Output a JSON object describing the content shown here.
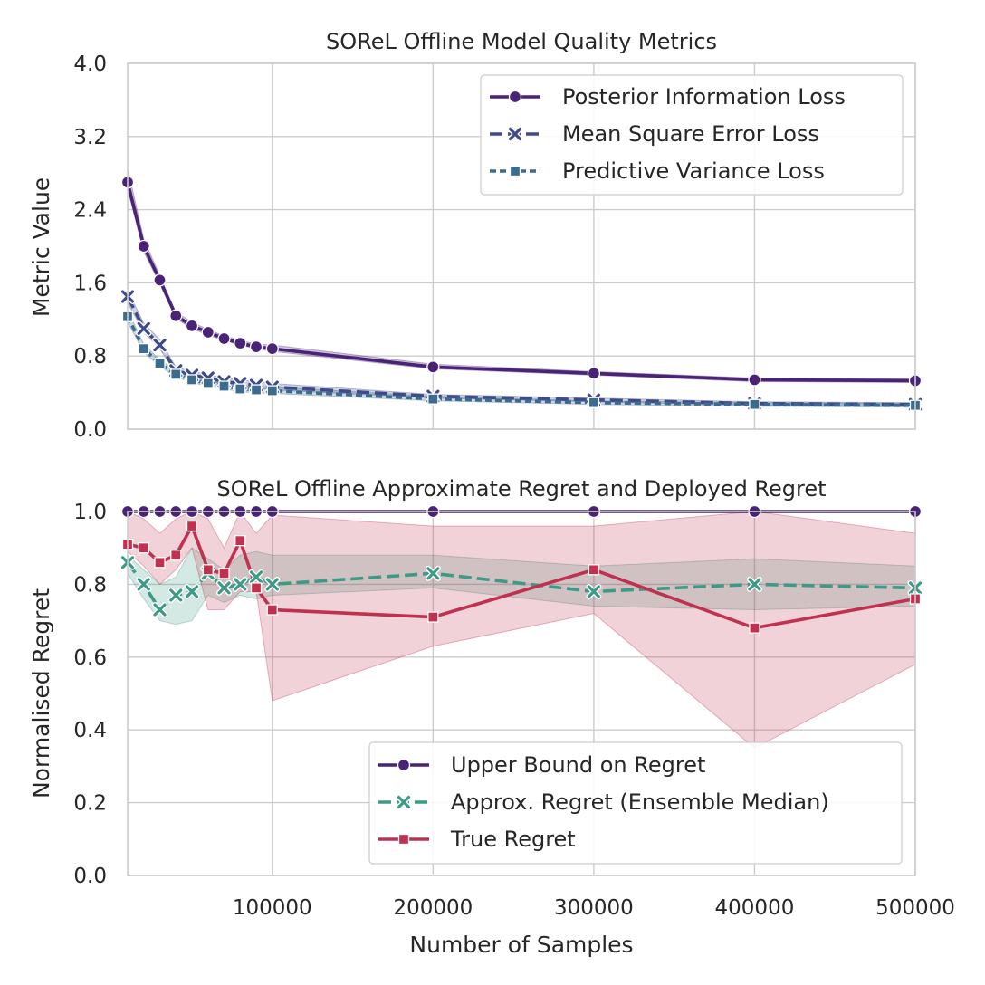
{
  "chart_data": [
    {
      "type": "line",
      "title": "SOReL Offline Model Quality Metrics",
      "xlabel": "",
      "ylabel": "Metric Value",
      "xlim": [
        10000,
        500000
      ],
      "ylim": [
        0,
        4
      ],
      "yticks": [
        "0.0",
        "0.8",
        "1.6",
        "2.4",
        "3.2",
        "4.0"
      ],
      "ytick_values": [
        0,
        0.8,
        1.6,
        2.4,
        3.2,
        4.0
      ],
      "x": [
        10000,
        20000,
        30000,
        40000,
        50000,
        60000,
        70000,
        80000,
        90000,
        100000,
        200000,
        300000,
        400000,
        500000
      ],
      "series": [
        {
          "name": "Posterior Information Loss",
          "color": "#4a2377",
          "marker": "circle",
          "dash": "",
          "values": [
            2.7,
            2.0,
            1.63,
            1.24,
            1.13,
            1.06,
            0.99,
            0.94,
            0.9,
            0.88,
            0.68,
            0.61,
            0.54,
            0.53
          ],
          "band_low": [
            2.62,
            1.94,
            1.59,
            1.21,
            1.1,
            1.03,
            0.97,
            0.92,
            0.88,
            0.85,
            0.66,
            0.59,
            0.52,
            0.51
          ],
          "band_high": [
            2.85,
            2.08,
            1.68,
            1.28,
            1.17,
            1.09,
            1.02,
            0.97,
            0.93,
            0.92,
            0.71,
            0.63,
            0.56,
            0.55
          ]
        },
        {
          "name": "Mean Square Error Loss",
          "color": "#3e4a89",
          "marker": "x",
          "dash": "14,6",
          "values": [
            1.45,
            1.1,
            0.92,
            0.64,
            0.59,
            0.56,
            0.52,
            0.5,
            0.48,
            0.46,
            0.36,
            0.32,
            0.28,
            0.27
          ],
          "band_low": [
            1.38,
            1.06,
            0.88,
            0.61,
            0.56,
            0.53,
            0.49,
            0.47,
            0.45,
            0.43,
            0.34,
            0.3,
            0.26,
            0.25
          ],
          "band_high": [
            1.52,
            1.16,
            0.98,
            0.68,
            0.63,
            0.6,
            0.56,
            0.54,
            0.52,
            0.5,
            0.38,
            0.34,
            0.3,
            0.29
          ]
        },
        {
          "name": "Predictive Variance Loss",
          "color": "#3b6c8e",
          "marker": "square",
          "dash": "7,4",
          "values": [
            1.23,
            0.88,
            0.72,
            0.6,
            0.54,
            0.5,
            0.47,
            0.44,
            0.43,
            0.42,
            0.33,
            0.29,
            0.27,
            0.26
          ],
          "band_low": [
            1.17,
            0.84,
            0.69,
            0.57,
            0.51,
            0.47,
            0.44,
            0.41,
            0.4,
            0.39,
            0.31,
            0.27,
            0.25,
            0.24
          ],
          "band_high": [
            1.3,
            0.93,
            0.76,
            0.64,
            0.58,
            0.54,
            0.5,
            0.48,
            0.47,
            0.46,
            0.36,
            0.31,
            0.29,
            0.28
          ]
        }
      ],
      "legend_position": "upper-right"
    },
    {
      "type": "line",
      "title": "SOReL Offline Approximate Regret and Deployed Regret",
      "xlabel": "Number of Samples",
      "ylabel": "Normalised Regret",
      "xlim": [
        10000,
        500000
      ],
      "ylim": [
        0,
        1
      ],
      "xticks": [
        "100000",
        "200000",
        "300000",
        "400000",
        "500000"
      ],
      "xtick_values": [
        100000,
        200000,
        300000,
        400000,
        500000
      ],
      "yticks": [
        "0.0",
        "0.2",
        "0.4",
        "0.6",
        "0.8",
        "1.0"
      ],
      "ytick_values": [
        0,
        0.2,
        0.4,
        0.6,
        0.8,
        1.0
      ],
      "x": [
        10000,
        20000,
        30000,
        40000,
        50000,
        60000,
        70000,
        80000,
        90000,
        100000,
        200000,
        300000,
        400000,
        500000
      ],
      "series": [
        {
          "name": "Upper Bound on Regret",
          "color": "#4a2377",
          "marker": "circle",
          "dash": "",
          "values": [
            1,
            1,
            1,
            1,
            1,
            1,
            1,
            1,
            1,
            1,
            1,
            1,
            1,
            1
          ],
          "band_low": [
            1,
            1,
            1,
            1,
            1,
            1,
            1,
            1,
            1,
            1,
            1,
            1,
            1,
            1
          ],
          "band_high": [
            1,
            1,
            1,
            1,
            1,
            1,
            1,
            1,
            1,
            1,
            1,
            1,
            1,
            1
          ]
        },
        {
          "name": "Approx. Regret (Ensemble Median)",
          "color": "#3e9a86",
          "marker": "x",
          "dash": "14,6",
          "values": [
            0.86,
            0.8,
            0.73,
            0.77,
            0.78,
            0.83,
            0.79,
            0.8,
            0.82,
            0.8,
            0.83,
            0.78,
            0.8,
            0.79
          ],
          "band_low": [
            0.83,
            0.76,
            0.7,
            0.69,
            0.7,
            0.77,
            0.75,
            0.77,
            0.76,
            0.77,
            0.79,
            0.74,
            0.73,
            0.74
          ],
          "band_high": [
            0.88,
            0.84,
            0.8,
            0.82,
            0.9,
            0.87,
            0.84,
            0.88,
            0.89,
            0.88,
            0.88,
            0.85,
            0.87,
            0.85
          ]
        },
        {
          "name": "True Regret",
          "color": "#c0304f",
          "marker": "square",
          "dash": "",
          "values": [
            0.91,
            0.9,
            0.86,
            0.88,
            0.96,
            0.84,
            0.83,
            0.92,
            0.79,
            0.73,
            0.71,
            0.84,
            0.68,
            0.76
          ],
          "band_low": [
            0.89,
            0.85,
            0.8,
            0.84,
            0.9,
            0.73,
            0.73,
            0.78,
            0.78,
            0.48,
            0.63,
            0.72,
            0.35,
            0.58
          ],
          "band_high": [
            1.0,
            0.98,
            0.94,
            0.98,
            1.0,
            0.98,
            0.9,
            1.0,
            0.94,
            0.99,
            0.96,
            0.96,
            1.0,
            0.94
          ]
        }
      ],
      "legend_position": "lower-right"
    }
  ]
}
